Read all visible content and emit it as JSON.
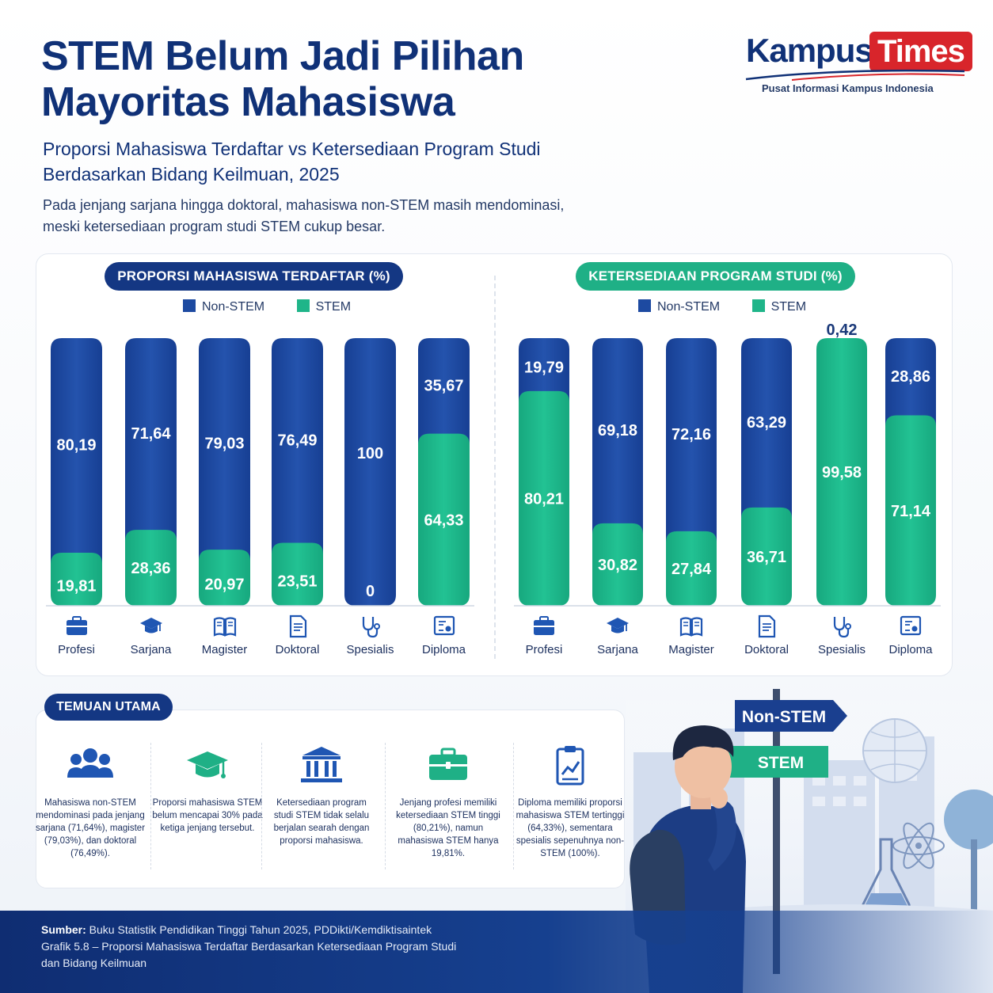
{
  "header": {
    "title_line1": "STEM Belum Jadi Pilihan",
    "title_line2": "Mayoritas Mahasiswa",
    "subtitle_line1": "Proporsi Mahasiswa Terdaftar vs Ketersediaan Program Studi",
    "subtitle_line2": "Berdasarkan Bidang Keilmuan, 2025",
    "desc_line1": "Pada jenjang sarjana hingga doktoral, mahasiswa non-STEM masih mendominasi,",
    "desc_line2": "meski ketersediaan program studi STEM cukup besar."
  },
  "logo": {
    "brand_part1": "Kampus",
    "brand_part2": "Times",
    "tagline": "Pusat Informasi Kampus Indonesia",
    "colors": {
      "brand_blue": "#103177",
      "brand_red": "#d8252b"
    }
  },
  "colors": {
    "non_stem": "#1d4aa1",
    "stem": "#1fb589",
    "navy": "#143783",
    "green_pill": "#1fb086"
  },
  "chart_data": [
    {
      "type": "bar",
      "stacked": true,
      "title": "PROPORSI MAHASISWA TERDAFTAR (%)",
      "categories": [
        "Profesi",
        "Sarjana",
        "Magister",
        "Doktoral",
        "Spesialis",
        "Diploma"
      ],
      "legend": [
        "Non-STEM",
        "STEM"
      ],
      "series": [
        {
          "name": "Non-STEM",
          "values": [
            "80,19",
            "71,64",
            "79,03",
            "76,49",
            "100",
            "35,67"
          ],
          "numeric": [
            80.19,
            71.64,
            79.03,
            76.49,
            100,
            35.67
          ]
        },
        {
          "name": "STEM",
          "values": [
            "19,81",
            "28,36",
            "20,97",
            "23,51",
            "0",
            "64,33"
          ],
          "numeric": [
            19.81,
            28.36,
            20.97,
            23.51,
            0,
            64.33
          ]
        }
      ],
      "ylim": [
        0,
        100
      ],
      "category_icons": [
        "briefcase-icon",
        "graduation-cap-icon",
        "book-icon",
        "document-icon",
        "stethoscope-icon",
        "certificate-icon"
      ]
    },
    {
      "type": "bar",
      "stacked": true,
      "title": "KETERSEDIAAN PROGRAM STUDI (%)",
      "categories": [
        "Profesi",
        "Sarjana",
        "Magister",
        "Doktoral",
        "Spesialis",
        "Diploma"
      ],
      "legend": [
        "Non-STEM",
        "STEM"
      ],
      "series": [
        {
          "name": "Non-STEM",
          "values": [
            "19,79",
            "69,18",
            "72,16",
            "63,29",
            "0,42",
            "28,86"
          ],
          "numeric": [
            19.79,
            69.18,
            72.16,
            63.29,
            0.42,
            28.86
          ]
        },
        {
          "name": "STEM",
          "values": [
            "80,21",
            "30,82",
            "27,84",
            "36,71",
            "99,58",
            "71,14"
          ],
          "numeric": [
            80.21,
            30.82,
            27.84,
            36.71,
            99.58,
            71.14
          ]
        }
      ],
      "ylim": [
        0,
        100
      ],
      "category_icons": [
        "briefcase-icon",
        "graduation-cap-icon",
        "book-icon",
        "document-icon",
        "stethoscope-icon",
        "certificate-icon"
      ]
    }
  ],
  "findings": {
    "title": "TEMUAN UTAMA",
    "items": [
      {
        "icon": "people-icon",
        "text": "Mahasiswa non-STEM mendominasi pada jenjang sarjana (71,64%), magister (79,03%), dan doktoral (76,49%)."
      },
      {
        "icon": "graduation-cap-icon",
        "text": "Proporsi mahasiswa STEM belum mencapai 30% pada ketiga jenjang tersebut."
      },
      {
        "icon": "institution-icon",
        "text": "Ketersediaan program studi STEM tidak selalu berjalan searah dengan proporsi mahasiswa."
      },
      {
        "icon": "briefcase-icon",
        "text": "Jenjang profesi memiliki ketersediaan STEM tinggi (80,21%), namun mahasiswa STEM hanya 19,81%."
      },
      {
        "icon": "clipboard-chart-icon",
        "text": "Diploma memiliki proporsi mahasiswa STEM tertinggi (64,33%), sementara spesialis sepenuhnya non-STEM (100%)."
      }
    ]
  },
  "scene": {
    "sign_top": "Non-STEM",
    "sign_bottom": "STEM"
  },
  "footer": {
    "source_label": "Sumber:",
    "source_text": " Buku Statistik Pendidikan Tinggi Tahun 2025, PDDikti/Kemdiktisaintek",
    "line2": "Grafik 5.8 – Proporsi Mahasiswa Terdaftar Berdasarkan Ketersediaan Program Studi",
    "line3": "dan Bidang Keilmuan"
  }
}
